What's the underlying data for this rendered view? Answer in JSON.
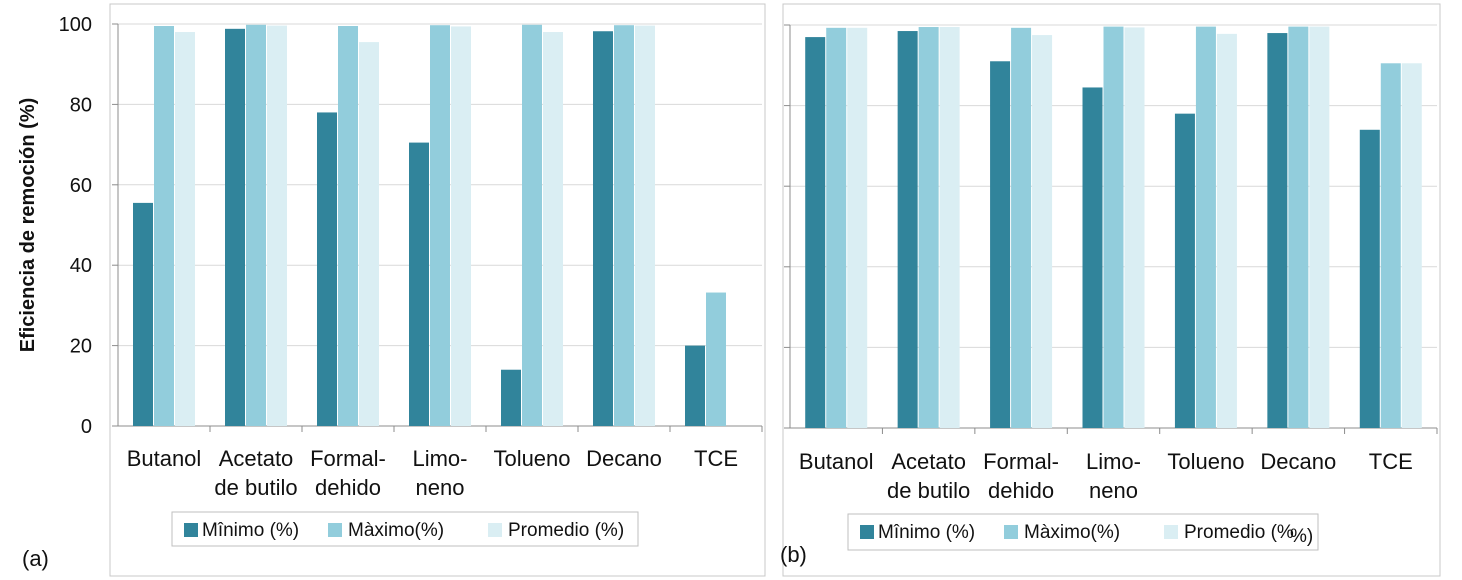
{
  "chart_data": [
    {
      "type": "bar",
      "panel_label": "(a)",
      "ylabel": "Eficiencia de remoción (%)",
      "ylim": [
        0,
        100
      ],
      "yticks": [
        "0",
        "20",
        "40",
        "60",
        "80",
        "100"
      ],
      "grid": true,
      "legend_placement": "bottom",
      "categories": [
        [
          "Butanol"
        ],
        [
          "Acetato",
          "de butilo"
        ],
        [
          "Formal-",
          "dehido"
        ],
        [
          "Limo-",
          "neno"
        ],
        [
          "Tolueno"
        ],
        [
          "Decano"
        ],
        [
          "TCE"
        ]
      ],
      "series": [
        {
          "name": "Mînimo (%)",
          "color": "#31849b",
          "values": [
            55.5,
            98.8,
            78,
            70.5,
            14,
            98.2,
            20
          ]
        },
        {
          "name": "Màximo(%)",
          "color": "#92cddc",
          "values": [
            99.5,
            99.8,
            99.5,
            99.7,
            99.8,
            99.7,
            33.2
          ]
        },
        {
          "name": "Promedio (%)",
          "color": "#daeef3",
          "values": [
            98,
            99.6,
            95.5,
            99.4,
            98,
            99.6,
            null
          ]
        }
      ]
    },
    {
      "type": "bar",
      "panel_label": "(b)",
      "ylabel": "",
      "ylim": [
        0,
        100
      ],
      "grid": true,
      "legend_placement": "bottom",
      "categories": [
        [
          "Butanol"
        ],
        [
          "Acetato",
          "de butilo"
        ],
        [
          "Formal-",
          "dehido"
        ],
        [
          "Limo-",
          "neno"
        ],
        [
          "Tolueno"
        ],
        [
          "Decano"
        ],
        [
          "TCE"
        ]
      ],
      "series": [
        {
          "name": "Mînimo (%)",
          "color": "#31849b",
          "values": [
            97,
            98.5,
            91,
            84.5,
            78,
            98,
            74
          ]
        },
        {
          "name": "Màximo(%)",
          "color": "#92cddc",
          "values": [
            99.3,
            99.5,
            99.3,
            99.6,
            99.6,
            99.6,
            90.5
          ]
        },
        {
          "name": "Promedio (%",
          "color": "#daeef3",
          "values": [
            99.3,
            99.5,
            97.5,
            99.4,
            97.8,
            99.6,
            90.5
          ]
        }
      ],
      "legend_tail": "%)"
    }
  ]
}
